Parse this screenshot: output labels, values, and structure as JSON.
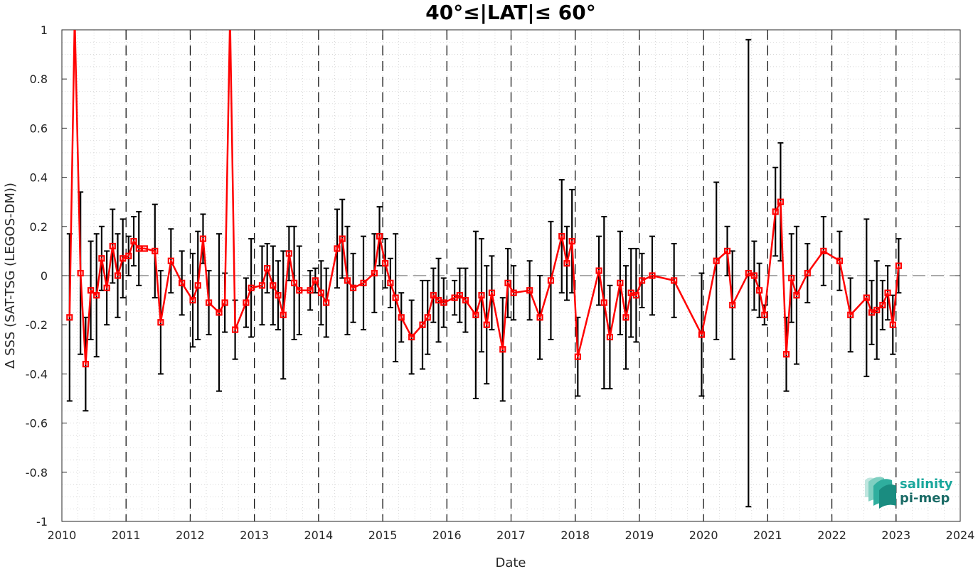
{
  "chart_data": {
    "type": "line",
    "title": "40°≤|LAT|≤ 60°",
    "xlabel": "Date",
    "ylabel": "Δ SSS (SAT-TSG (LEGOS-DM))",
    "xlim": [
      2010,
      2024
    ],
    "ylim": [
      -1,
      1
    ],
    "x_ticks": [
      "2010",
      "2011",
      "2012",
      "2013",
      "2014",
      "2015",
      "2016",
      "2017",
      "2018",
      "2019",
      "2020",
      "2021",
      "2022",
      "2023",
      "2024"
    ],
    "y_ticks": [
      "1",
      "0.8",
      "0.6",
      "0.4",
      "0.2",
      "0",
      "-0.2",
      "-0.4",
      "-0.6",
      "-0.8",
      "-1"
    ],
    "grid": true,
    "year_dividers": "dashed vertical lines at each year",
    "zero_line": "dashed horizontal line at 0",
    "series": [
      {
        "color": "#ff0000",
        "marker": "square",
        "errorbar_color": "#000000",
        "x": [
          2010.12,
          2010.2,
          2010.29,
          2010.37,
          2010.45,
          2010.54,
          2010.62,
          2010.7,
          2010.79,
          2010.87,
          2010.95,
          2011.04,
          2011.12,
          2011.2,
          2011.29,
          2011.45,
          2011.54,
          2011.7,
          2011.87,
          2012.04,
          2012.12,
          2012.2,
          2012.29,
          2012.45,
          2012.54,
          2012.62,
          2012.7,
          2012.87,
          2012.95,
          2013.12,
          2013.2,
          2013.29,
          2013.37,
          2013.45,
          2013.54,
          2013.62,
          2013.7,
          2013.87,
          2013.95,
          2014.04,
          2014.12,
          2014.29,
          2014.37,
          2014.45,
          2014.54,
          2014.7,
          2014.87,
          2014.95,
          2015.04,
          2015.12,
          2015.2,
          2015.29,
          2015.45,
          2015.62,
          2015.7,
          2015.79,
          2015.87,
          2015.95,
          2016.12,
          2016.2,
          2016.29,
          2016.45,
          2016.54,
          2016.62,
          2016.7,
          2016.87,
          2016.95,
          2017.04,
          2017.29,
          2017.45,
          2017.62,
          2017.79,
          2017.87,
          2017.95,
          2018.04,
          2018.37,
          2018.45,
          2018.54,
          2018.7,
          2018.79,
          2018.87,
          2018.95,
          2019.04,
          2019.2,
          2019.54,
          2019.97,
          2020.2,
          2020.37,
          2020.45,
          2020.7,
          2020.79,
          2020.87,
          2020.95,
          2021.12,
          2021.2,
          2021.29,
          2021.37,
          2021.45,
          2021.62,
          2021.87,
          2022.12,
          2022.29,
          2022.54,
          2022.62,
          2022.7,
          2022.79,
          2022.87,
          2022.95,
          2023.04
        ],
        "y": [
          -0.17,
          1.05,
          0.01,
          -0.36,
          -0.06,
          -0.08,
          0.07,
          -0.05,
          0.12,
          0.0,
          0.07,
          0.08,
          0.14,
          0.11,
          0.11,
          0.1,
          -0.19,
          0.06,
          -0.03,
          -0.1,
          -0.04,
          0.15,
          -0.11,
          -0.15,
          -0.11,
          1.05,
          -0.22,
          -0.11,
          -0.05,
          -0.04,
          0.03,
          -0.04,
          -0.08,
          -0.16,
          0.09,
          -0.03,
          -0.06,
          -0.06,
          -0.02,
          -0.07,
          -0.11,
          0.11,
          0.15,
          -0.02,
          -0.05,
          -0.03,
          0.01,
          0.16,
          0.05,
          -0.03,
          -0.09,
          -0.17,
          -0.25,
          -0.2,
          -0.17,
          -0.08,
          -0.1,
          -0.11,
          -0.09,
          -0.08,
          -0.1,
          -0.16,
          -0.08,
          -0.2,
          -0.07,
          -0.3,
          -0.03,
          -0.07,
          -0.06,
          -0.17,
          -0.02,
          0.16,
          0.05,
          0.14,
          -0.33,
          0.02,
          -0.11,
          -0.25,
          -0.03,
          -0.17,
          -0.07,
          -0.08,
          -0.02,
          0.0,
          -0.02,
          -0.24,
          0.06,
          0.1,
          -0.12,
          0.01,
          0.0,
          -0.06,
          -0.16,
          0.26,
          0.3,
          -0.32,
          -0.01,
          -0.08,
          0.01,
          0.1,
          0.06,
          -0.16,
          -0.09,
          -0.15,
          -0.14,
          -0.12,
          -0.07,
          -0.2,
          0.04
        ],
        "err": [
          0.34,
          0.0,
          0.33,
          0.19,
          0.2,
          0.25,
          0.13,
          0.15,
          0.15,
          0.17,
          0.16,
          0.08,
          0.1,
          0.15,
          0.0,
          0.19,
          0.21,
          0.13,
          0.13,
          0.19,
          0.22,
          0.1,
          0.13,
          0.32,
          0.12,
          0.0,
          0.12,
          0.1,
          0.2,
          0.16,
          0.1,
          0.16,
          0.14,
          0.26,
          0.11,
          0.23,
          0.18,
          0.08,
          0.05,
          0.13,
          0.14,
          0.16,
          0.16,
          0.22,
          0.14,
          0.19,
          0.16,
          0.12,
          0.1,
          0.1,
          0.26,
          0.1,
          0.15,
          0.18,
          0.15,
          0.11,
          0.17,
          0.1,
          0.07,
          0.11,
          0.13,
          0.34,
          0.23,
          0.24,
          0.15,
          0.21,
          0.14,
          0.11,
          0.12,
          0.17,
          0.24,
          0.23,
          0.15,
          0.21,
          0.16,
          0.14,
          0.35,
          0.21,
          0.21,
          0.21,
          0.18,
          0.19,
          0.11,
          0.16,
          0.15,
          0.25,
          0.32,
          0.1,
          0.22,
          0.95,
          0.14,
          0.11,
          0.04,
          0.18,
          0.24,
          0.15,
          0.18,
          0.28,
          0.12,
          0.14,
          0.12,
          0.15,
          0.32,
          0.13,
          0.2,
          0.1,
          0.11,
          0.12,
          0.11
        ]
      }
    ]
  },
  "logo": {
    "line1": "salinity",
    "line2": "pi-mep",
    "color1": "#1aa79c",
    "color2": "#1a6b66"
  }
}
